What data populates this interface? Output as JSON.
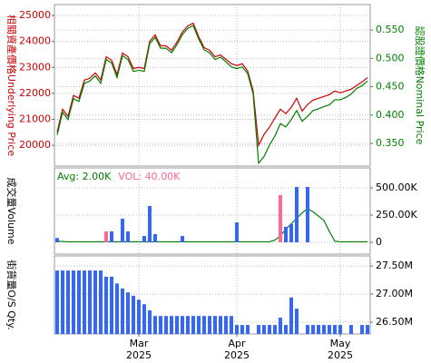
{
  "chart_data": [
    {
      "type": "line",
      "y_label": "相關資產價格Underlying Price",
      "y2_label": "認股證價格Nominal Price",
      "y_color": "#cc0000",
      "y2_color": "#008000",
      "ylim": [
        19200,
        25420
      ],
      "yticks": [
        20000,
        21000,
        22000,
        23000,
        24000,
        25000
      ],
      "y2lim": [
        0.31,
        0.595
      ],
      "y2ticks": [
        {
          "value": 0.35,
          "label": "0.350"
        },
        {
          "value": 0.4,
          "label": "0.400"
        },
        {
          "value": 0.45,
          "label": "0.450"
        },
        {
          "value": 0.5,
          "label": "0.500"
        },
        {
          "value": 0.55,
          "label": "0.550"
        }
      ],
      "grid": true,
      "series": [
        {
          "color": "#cc0000",
          "values": [
            20520,
            21390,
            21110,
            21920,
            21810,
            22510,
            22580,
            22790,
            22510,
            23410,
            23280,
            22720,
            23550,
            23410,
            22960,
            23000,
            22960,
            24010,
            24250,
            23830,
            23830,
            23660,
            23970,
            24360,
            24600,
            24700,
            24180,
            23760,
            23660,
            23410,
            23480,
            23310,
            23140,
            23070,
            23140,
            22860,
            22090,
            20000,
            20420,
            20700,
            21050,
            21390,
            21220,
            21460,
            21810,
            21320,
            21570,
            21740,
            21810,
            21880,
            21950,
            22090,
            22020,
            22090,
            22160,
            22300,
            22440,
            22610
          ]
        },
        {
          "color": "#008000",
          "axis": "y2",
          "values": [
            0.365,
            0.405,
            0.392,
            0.429,
            0.424,
            0.456,
            0.46,
            0.469,
            0.456,
            0.498,
            0.492,
            0.466,
            0.505,
            0.498,
            0.477,
            0.479,
            0.477,
            0.526,
            0.537,
            0.518,
            0.518,
            0.51,
            0.524,
            0.542,
            0.553,
            0.558,
            0.534,
            0.515,
            0.51,
            0.498,
            0.502,
            0.494,
            0.485,
            0.482,
            0.485,
            0.473,
            0.437,
            0.315,
            0.327,
            0.347,
            0.363,
            0.385,
            0.379,
            0.392,
            0.408,
            0.389,
            0.398,
            0.408,
            0.411,
            0.415,
            0.418,
            0.427,
            0.427,
            0.431,
            0.437,
            0.447,
            0.452,
            0.46
          ]
        }
      ]
    },
    {
      "type": "bar",
      "y_label": "成交量Volume",
      "y2lim": [
        -108,
        683
      ],
      "y2ticks": [
        0,
        {
          "value": 250,
          "label": "250.00K"
        },
        {
          "value": 500,
          "label": "500.00K"
        }
      ],
      "grid": true,
      "series": [
        {
          "name": "Avg: 2.00K",
          "type": "line",
          "color": "#008000",
          "axis": "y2",
          "values": [
            10,
            8,
            5,
            5,
            5,
            5,
            5,
            5,
            5,
            5,
            5,
            5,
            5,
            5,
            5,
            5,
            5,
            5,
            5,
            5,
            5,
            5,
            5,
            5,
            5,
            5,
            5,
            5,
            5,
            5,
            5,
            5,
            5,
            5,
            5,
            5,
            5,
            5,
            5,
            5,
            20,
            60,
            120,
            170,
            220,
            270,
            310,
            280,
            240,
            200,
            100,
            10,
            5,
            5,
            5,
            5,
            5,
            5
          ]
        },
        {
          "name": "VOL: 40.00K",
          "type": "bar",
          "color": "#ff6699",
          "axis": "y2",
          "values": [
            40,
            0,
            0,
            0,
            0,
            0,
            0,
            0,
            0,
            100,
            100,
            0,
            217,
            100,
            0,
            0,
            58,
            333,
            75,
            0,
            0,
            0,
            0,
            58,
            0,
            0,
            0,
            0,
            0,
            0,
            0,
            0,
            0,
            183,
            0,
            0,
            0,
            0,
            0,
            0,
            0,
            433,
            142,
            167,
            508,
            0,
            508,
            0,
            0,
            0,
            0,
            0,
            0,
            0,
            0,
            0,
            0,
            0
          ],
          "colors": [
            "#3366ff",
            "#3366ff",
            "#3366ff",
            "#3366ff",
            "#3366ff",
            "#3366ff",
            "#3366ff",
            "#3366ff",
            "#3366ff",
            "#ff6699",
            "#3366ff",
            "#3366ff",
            "#3366ff",
            "#3366ff",
            "#3366ff",
            "#3366ff",
            "#3366ff",
            "#3366ff",
            "#3366ff",
            "#3366ff",
            "#3366ff",
            "#3366ff",
            "#3366ff",
            "#3366ff",
            "#3366ff",
            "#3366ff",
            "#3366ff",
            "#3366ff",
            "#3366ff",
            "#3366ff",
            "#3366ff",
            "#3366ff",
            "#3366ff",
            "#3366ff",
            "#3366ff",
            "#3366ff",
            "#3366ff",
            "#3366ff",
            "#3366ff",
            "#3366ff",
            "#3366ff",
            "#ff6699",
            "#3366ff",
            "#3366ff",
            "#3366ff",
            "#3366ff",
            "#3366ff",
            "#3366ff",
            "#3366ff",
            "#3366ff",
            "#3366ff",
            "#3366ff",
            "#3366ff",
            "#3366ff",
            "#3366ff",
            "#3366ff",
            "#3366ff",
            "#3366ff"
          ]
        }
      ]
    },
    {
      "type": "bar",
      "y_label": "街貨量O/S Qty.",
      "y2lim": [
        26.29,
        27.68
      ],
      "y2ticks": [
        {
          "value": 26.5,
          "label": "26.50M"
        },
        {
          "value": 27,
          "label": "27.00M"
        },
        {
          "value": 27.5,
          "label": "27.50M"
        }
      ],
      "grid": true,
      "categories": [
        null,
        null,
        null,
        null,
        null,
        null,
        null,
        null,
        null,
        null,
        null,
        null,
        null,
        null,
        null,
        "Mar\n2025",
        null,
        null,
        null,
        null,
        null,
        null,
        null,
        null,
        null,
        null,
        null,
        null,
        null,
        null,
        null,
        null,
        null,
        "Apr\n2025",
        null,
        null,
        null,
        null,
        null,
        null,
        null,
        null,
        null,
        null,
        null,
        null,
        null,
        null,
        null,
        null,
        null,
        null,
        "May\n2025",
        null,
        null,
        null,
        null,
        null
      ],
      "series": [
        {
          "color": "#3366ff",
          "axis": "y2",
          "values": [
            27.42,
            27.42,
            27.42,
            27.42,
            27.42,
            27.42,
            27.42,
            27.42,
            27.42,
            27.31,
            27.31,
            27.19,
            27.1,
            27.03,
            26.97,
            26.9,
            26.82,
            26.71,
            26.61,
            26.61,
            26.61,
            26.61,
            26.61,
            26.61,
            26.61,
            26.61,
            26.61,
            26.61,
            26.61,
            26.61,
            26.61,
            26.61,
            26.61,
            26.45,
            26.45,
            26.45,
            null,
            26.45,
            26.45,
            26.45,
            26.45,
            26.58,
            26.45,
            26.94,
            26.74,
            null,
            26.45,
            26.45,
            26.45,
            26.45,
            26.45,
            26.45,
            26.45,
            null,
            26.45,
            null,
            26.45,
            26.45
          ]
        }
      ]
    }
  ]
}
